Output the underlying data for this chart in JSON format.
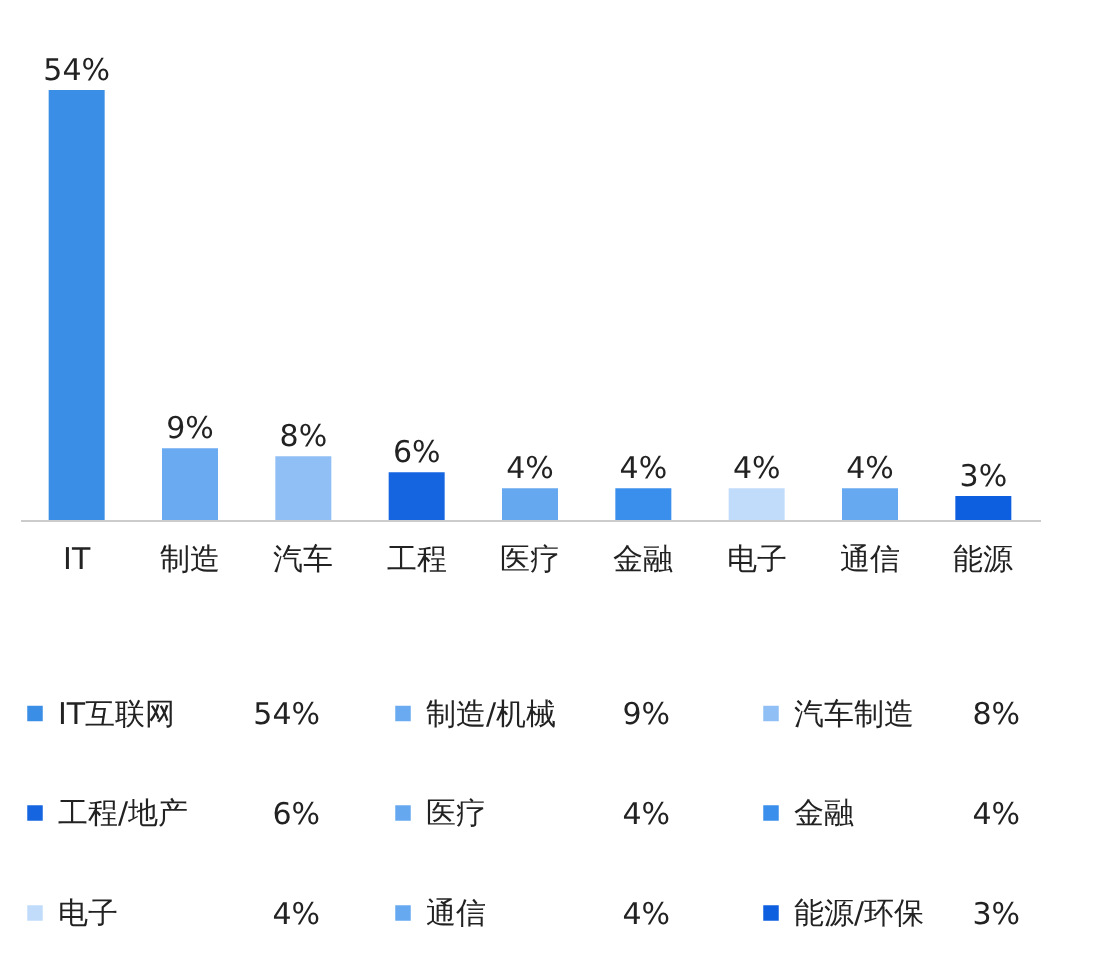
{
  "chart_data": {
    "type": "bar",
    "categories": [
      "IT",
      "制造",
      "汽车",
      "工程",
      "医疗",
      "金融",
      "电子",
      "通信",
      "能源"
    ],
    "tick_labels": "x",
    "grid": false,
    "legend": "bottom",
    "data_labels": true,
    "series": [
      {
        "name": "IT互联网",
        "color": "#3a8ee6",
        "values": [
          54,
          null,
          null,
          null,
          null,
          null,
          null,
          null,
          null
        ],
        "value_labels": [
          "54%",
          null,
          null,
          null,
          null,
          null,
          null,
          null,
          null
        ]
      },
      {
        "name": "制造/机械",
        "color": "#6aaaf0",
        "values": [
          null,
          9,
          null,
          null,
          null,
          null,
          null,
          null,
          null
        ],
        "value_labels": [
          null,
          "9%",
          null,
          null,
          null,
          null,
          null,
          null,
          null
        ]
      },
      {
        "name": "汽车制造",
        "color": "#8fbff5",
        "values": [
          null,
          null,
          8,
          null,
          null,
          null,
          null,
          null,
          null
        ],
        "value_labels": [
          null,
          null,
          "8%",
          null,
          null,
          null,
          null,
          null,
          null
        ]
      },
      {
        "name": "工程/地产",
        "color": "#1565e0",
        "values": [
          null,
          null,
          null,
          6,
          null,
          null,
          null,
          null,
          null
        ],
        "value_labels": [
          null,
          null,
          null,
          "6%",
          null,
          null,
          null,
          null,
          null
        ]
      },
      {
        "name": "医疗",
        "color": "#66a8f0",
        "values": [
          null,
          null,
          null,
          null,
          4,
          null,
          null,
          null,
          null
        ],
        "value_labels": [
          null,
          null,
          null,
          null,
          "4%",
          null,
          null,
          null,
          null
        ]
      },
      {
        "name": "金融",
        "color": "#3b8fec",
        "values": [
          null,
          null,
          null,
          null,
          null,
          4,
          null,
          null,
          null
        ],
        "value_labels": [
          null,
          null,
          null,
          null,
          null,
          "4%",
          null,
          null,
          null
        ]
      },
      {
        "name": "电子",
        "color": "#c0dcfa",
        "values": [
          null,
          null,
          null,
          null,
          null,
          null,
          4,
          null,
          null
        ],
        "value_labels": [
          null,
          null,
          null,
          null,
          null,
          null,
          "4%",
          null,
          null
        ]
      },
      {
        "name": "通信",
        "color": "#67a9f1",
        "values": [
          null,
          null,
          null,
          null,
          null,
          null,
          null,
          4,
          null
        ],
        "value_labels": [
          null,
          null,
          null,
          null,
          null,
          null,
          null,
          "4%",
          null
        ]
      },
      {
        "name": "能源/环保",
        "color": "#0d5fe0",
        "values": [
          null,
          null,
          null,
          null,
          null,
          null,
          null,
          null,
          3
        ],
        "value_labels": [
          null,
          null,
          null,
          null,
          null,
          null,
          null,
          null,
          "3%"
        ]
      }
    ]
  }
}
